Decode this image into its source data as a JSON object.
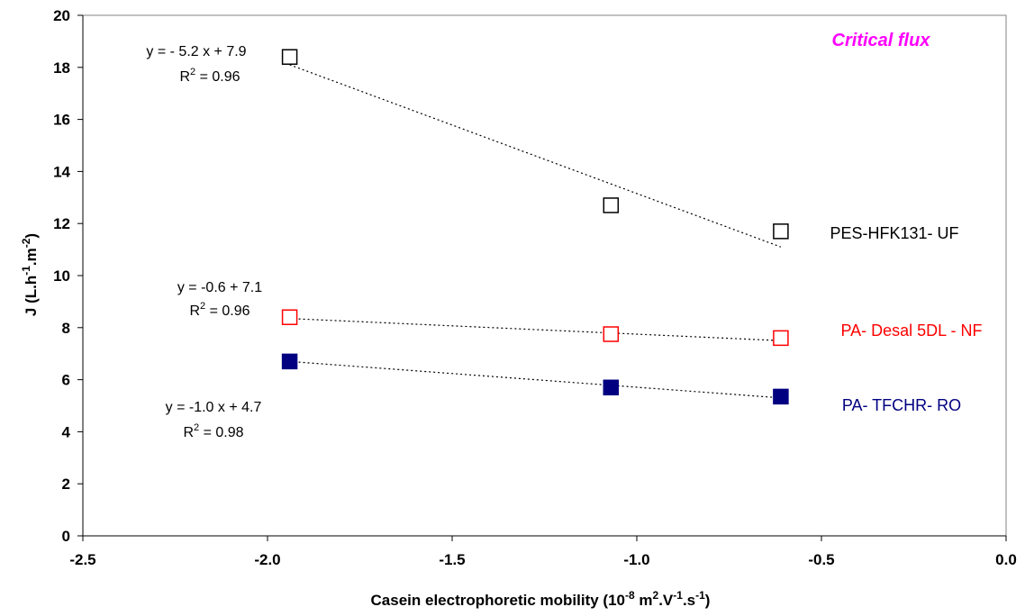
{
  "chart_data": {
    "type": "scatter",
    "title": "Critical flux",
    "title_color": "#ff00ff",
    "xlabel": {
      "main": "Casein electrophoretic mobility (10",
      "sup1": "-8",
      "mid1": " m",
      "sup2": "2",
      "mid2": ".V",
      "sup3": "-1",
      "mid3": ".s",
      "sup4": "-1",
      "end": ")"
    },
    "ylabel": {
      "main": "J (L.h",
      "sup1": "-1",
      "mid": ".m",
      "sup2": "-2",
      "end": ")"
    },
    "xlim": [
      -2.5,
      0.0
    ],
    "ylim": [
      0,
      20
    ],
    "xticks": [
      -2.5,
      -2.0,
      -1.5,
      -1.0,
      -0.5,
      0.0
    ],
    "xtick_labels": [
      "-2.5",
      "-2.0",
      "-1.5",
      "-1.0",
      "-0.5",
      "0.0"
    ],
    "yticks": [
      0,
      2,
      4,
      6,
      8,
      10,
      12,
      14,
      16,
      18,
      20
    ],
    "ytick_labels": [
      "0",
      "2",
      "4",
      "6",
      "8",
      "10",
      "12",
      "14",
      "16",
      "18",
      "20"
    ],
    "grid": false,
    "legend": "none",
    "series": [
      {
        "name": "PES-HFK131- UF",
        "color": "#000000",
        "marker": "open-square",
        "x": [
          -1.94,
          -1.07,
          -0.61
        ],
        "y": [
          18.4,
          12.7,
          11.7
        ],
        "trend": {
          "x": [
            -1.94,
            -0.61
          ],
          "y": [
            18.1,
            11.1
          ]
        },
        "equation": "y = - 5.2 x + 7.9",
        "r2": "0.96"
      },
      {
        "name": "PA- Desal 5DL - NF",
        "color": "#ff0000",
        "marker": "open-square",
        "x": [
          -1.94,
          -1.07,
          -0.61
        ],
        "y": [
          8.4,
          7.75,
          7.6
        ],
        "trend": {
          "x": [
            -1.94,
            -0.61
          ],
          "y": [
            8.35,
            7.5
          ]
        },
        "equation": "y = -0.6 + 7.1",
        "r2": "0.96"
      },
      {
        "name": "PA- TFCHR- RO",
        "color": "#000080",
        "marker": "filled-square",
        "x": [
          -1.94,
          -1.07,
          -0.61
        ],
        "y": [
          6.7,
          5.7,
          5.35
        ],
        "trend": {
          "x": [
            -1.94,
            -0.61
          ],
          "y": [
            6.7,
            5.3
          ]
        },
        "equation": "y = -1.0 x + 4.7",
        "r2": "0.98"
      }
    ],
    "r2_prefix": "R",
    "r2_sup": "2",
    "r2_eq": " = "
  }
}
